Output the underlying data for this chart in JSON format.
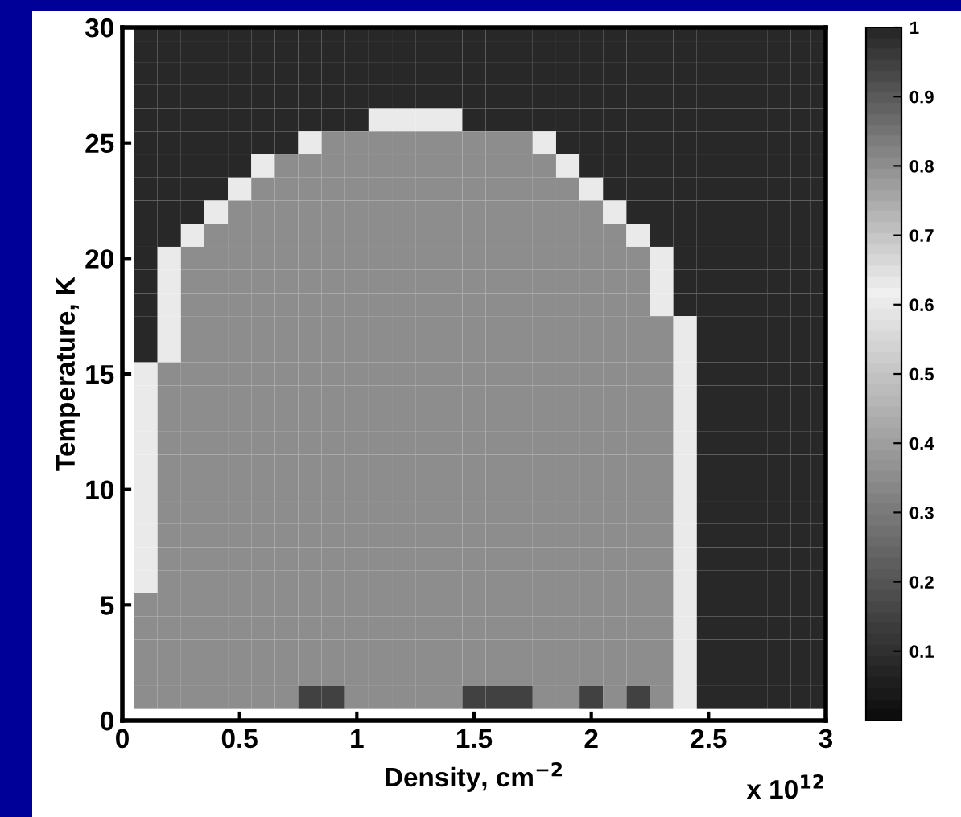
{
  "chart_data": {
    "type": "heatmap",
    "xlabel": "Density, cm$^{−2}$",
    "ylabel": "Temperature, K",
    "annotations": [
      "x 10$^{12}$"
    ],
    "x": [
      0.1,
      0.2,
      0.3,
      0.4,
      0.5,
      0.6,
      0.7,
      0.8,
      0.9,
      1.0,
      1.1,
      1.2,
      1.3,
      1.4,
      1.5,
      1.6,
      1.7,
      1.8,
      1.9,
      2.0,
      2.1,
      2.2,
      2.3,
      2.4,
      2.5,
      2.6,
      2.7,
      2.8,
      2.9,
      2.975
    ],
    "y": [
      29.75,
      29,
      28,
      27,
      26,
      25,
      24,
      23,
      22,
      21,
      20,
      19,
      18,
      17,
      16,
      15,
      14,
      13,
      12,
      11,
      10,
      9,
      8,
      7,
      6,
      5,
      4,
      3,
      2,
      1
    ],
    "cells": [
      [
        1,
        1,
        1,
        1,
        1,
        1,
        1,
        1,
        1,
        1,
        1,
        1,
        1,
        1,
        1,
        1,
        1,
        1,
        1,
        1,
        1,
        1,
        1,
        1,
        1,
        1,
        1,
        1,
        1,
        1
      ],
      [
        1,
        1,
        1,
        1,
        1,
        1,
        1,
        1,
        1,
        1,
        1,
        1,
        1,
        1,
        1,
        1,
        1,
        1,
        1,
        1,
        1,
        1,
        1,
        1,
        1,
        1,
        1,
        1,
        1,
        1
      ],
      [
        1,
        1,
        1,
        1,
        1,
        1,
        1,
        1,
        1,
        1,
        1,
        1,
        1,
        1,
        1,
        1,
        1,
        1,
        1,
        1,
        1,
        1,
        1,
        1,
        1,
        1,
        1,
        1,
        1,
        1
      ],
      [
        1,
        1,
        1,
        1,
        1,
        1,
        1,
        1,
        1,
        1,
        1,
        1,
        1,
        1,
        1,
        1,
        1,
        1,
        1,
        1,
        1,
        1,
        1,
        1,
        1,
        1,
        1,
        1,
        1,
        1
      ],
      [
        1,
        1,
        1,
        1,
        1,
        1,
        1,
        1,
        1,
        1,
        0.6,
        0.6,
        0.6,
        0.6,
        1,
        1,
        1,
        1,
        1,
        1,
        1,
        1,
        1,
        1,
        1,
        1,
        1,
        1,
        1,
        1
      ],
      [
        1,
        1,
        1,
        1,
        1,
        1,
        1,
        0.6,
        0.35,
        0.35,
        0.35,
        0.35,
        0.35,
        0.35,
        0.35,
        0.35,
        0.35,
        0.6,
        1,
        1,
        1,
        1,
        1,
        1,
        1,
        1,
        1,
        1,
        1,
        1
      ],
      [
        1,
        1,
        1,
        1,
        1,
        0.6,
        0.35,
        0.35,
        0.35,
        0.35,
        0.35,
        0.35,
        0.35,
        0.35,
        0.35,
        0.35,
        0.35,
        0.35,
        0.6,
        1,
        1,
        1,
        1,
        1,
        1,
        1,
        1,
        1,
        1,
        1
      ],
      [
        1,
        1,
        1,
        1,
        0.6,
        0.35,
        0.35,
        0.35,
        0.35,
        0.35,
        0.35,
        0.35,
        0.35,
        0.35,
        0.35,
        0.35,
        0.35,
        0.35,
        0.35,
        0.6,
        1,
        1,
        1,
        1,
        1,
        1,
        1,
        1,
        1,
        1
      ],
      [
        1,
        1,
        1,
        0.6,
        0.35,
        0.35,
        0.35,
        0.35,
        0.35,
        0.35,
        0.35,
        0.35,
        0.35,
        0.35,
        0.35,
        0.35,
        0.35,
        0.35,
        0.35,
        0.35,
        0.6,
        1,
        1,
        1,
        1,
        1,
        1,
        1,
        1,
        1
      ],
      [
        1,
        1,
        0.6,
        0.35,
        0.35,
        0.35,
        0.35,
        0.35,
        0.35,
        0.35,
        0.35,
        0.35,
        0.35,
        0.35,
        0.35,
        0.35,
        0.35,
        0.35,
        0.35,
        0.35,
        0.35,
        0.6,
        1,
        1,
        1,
        1,
        1,
        1,
        1,
        1
      ],
      [
        1,
        0.6,
        0.35,
        0.35,
        0.35,
        0.35,
        0.35,
        0.35,
        0.35,
        0.35,
        0.35,
        0.35,
        0.35,
        0.35,
        0.35,
        0.35,
        0.35,
        0.35,
        0.35,
        0.35,
        0.35,
        0.35,
        0.6,
        1,
        1,
        1,
        1,
        1,
        1,
        1
      ],
      [
        1,
        0.6,
        0.35,
        0.35,
        0.35,
        0.35,
        0.35,
        0.35,
        0.35,
        0.35,
        0.35,
        0.35,
        0.35,
        0.35,
        0.35,
        0.35,
        0.35,
        0.35,
        0.35,
        0.35,
        0.35,
        0.35,
        0.6,
        1,
        1,
        1,
        1,
        1,
        1,
        1
      ],
      [
        1,
        0.6,
        0.35,
        0.35,
        0.35,
        0.35,
        0.35,
        0.35,
        0.35,
        0.35,
        0.35,
        0.35,
        0.35,
        0.35,
        0.35,
        0.35,
        0.35,
        0.35,
        0.35,
        0.35,
        0.35,
        0.35,
        0.6,
        1,
        1,
        1,
        1,
        1,
        1,
        1
      ],
      [
        1,
        0.6,
        0.35,
        0.35,
        0.35,
        0.35,
        0.35,
        0.35,
        0.35,
        0.35,
        0.35,
        0.35,
        0.35,
        0.35,
        0.35,
        0.35,
        0.35,
        0.35,
        0.35,
        0.35,
        0.35,
        0.35,
        0.35,
        0.6,
        1,
        1,
        1,
        1,
        1,
        1
      ],
      [
        1,
        0.6,
        0.35,
        0.35,
        0.35,
        0.35,
        0.35,
        0.35,
        0.35,
        0.35,
        0.35,
        0.35,
        0.35,
        0.35,
        0.35,
        0.35,
        0.35,
        0.35,
        0.35,
        0.35,
        0.35,
        0.35,
        0.35,
        0.6,
        1,
        1,
        1,
        1,
        1,
        1
      ],
      [
        0.6,
        0.35,
        0.35,
        0.35,
        0.35,
        0.35,
        0.35,
        0.35,
        0.35,
        0.35,
        0.35,
        0.35,
        0.35,
        0.35,
        0.35,
        0.35,
        0.35,
        0.35,
        0.35,
        0.35,
        0.35,
        0.35,
        0.35,
        0.6,
        1,
        1,
        1,
        1,
        1,
        1
      ],
      [
        0.6,
        0.35,
        0.35,
        0.35,
        0.35,
        0.35,
        0.35,
        0.35,
        0.35,
        0.35,
        0.35,
        0.35,
        0.35,
        0.35,
        0.35,
        0.35,
        0.35,
        0.35,
        0.35,
        0.35,
        0.35,
        0.35,
        0.35,
        0.6,
        1,
        1,
        1,
        1,
        1,
        1
      ],
      [
        0.6,
        0.35,
        0.35,
        0.35,
        0.35,
        0.35,
        0.35,
        0.35,
        0.35,
        0.35,
        0.35,
        0.35,
        0.35,
        0.35,
        0.35,
        0.35,
        0.35,
        0.35,
        0.35,
        0.35,
        0.35,
        0.35,
        0.35,
        0.6,
        1,
        1,
        1,
        1,
        1,
        1
      ],
      [
        0.6,
        0.35,
        0.35,
        0.35,
        0.35,
        0.35,
        0.35,
        0.35,
        0.35,
        0.35,
        0.35,
        0.35,
        0.35,
        0.35,
        0.35,
        0.35,
        0.35,
        0.35,
        0.35,
        0.35,
        0.35,
        0.35,
        0.35,
        0.6,
        1,
        1,
        1,
        1,
        1,
        1
      ],
      [
        0.6,
        0.35,
        0.35,
        0.35,
        0.35,
        0.35,
        0.35,
        0.35,
        0.35,
        0.35,
        0.35,
        0.35,
        0.35,
        0.35,
        0.35,
        0.35,
        0.35,
        0.35,
        0.35,
        0.35,
        0.35,
        0.35,
        0.35,
        0.6,
        1,
        1,
        1,
        1,
        1,
        1
      ],
      [
        0.6,
        0.35,
        0.35,
        0.35,
        0.35,
        0.35,
        0.35,
        0.35,
        0.35,
        0.35,
        0.35,
        0.35,
        0.35,
        0.35,
        0.35,
        0.35,
        0.35,
        0.35,
        0.35,
        0.35,
        0.35,
        0.35,
        0.35,
        0.6,
        1,
        1,
        1,
        1,
        1,
        1
      ],
      [
        0.6,
        0.35,
        0.35,
        0.35,
        0.35,
        0.35,
        0.35,
        0.35,
        0.35,
        0.35,
        0.35,
        0.35,
        0.35,
        0.35,
        0.35,
        0.35,
        0.35,
        0.35,
        0.35,
        0.35,
        0.35,
        0.35,
        0.35,
        0.6,
        1,
        1,
        1,
        1,
        1,
        1
      ],
      [
        0.6,
        0.35,
        0.35,
        0.35,
        0.35,
        0.35,
        0.35,
        0.35,
        0.35,
        0.35,
        0.35,
        0.35,
        0.35,
        0.35,
        0.35,
        0.35,
        0.35,
        0.35,
        0.35,
        0.35,
        0.35,
        0.35,
        0.35,
        0.6,
        1,
        1,
        1,
        1,
        1,
        1
      ],
      [
        0.6,
        0.35,
        0.35,
        0.35,
        0.35,
        0.35,
        0.35,
        0.35,
        0.35,
        0.35,
        0.35,
        0.35,
        0.35,
        0.35,
        0.35,
        0.35,
        0.35,
        0.35,
        0.35,
        0.35,
        0.35,
        0.35,
        0.35,
        0.6,
        1,
        1,
        1,
        1,
        1,
        1
      ],
      [
        0.6,
        0.35,
        0.35,
        0.35,
        0.35,
        0.35,
        0.35,
        0.35,
        0.35,
        0.35,
        0.35,
        0.35,
        0.35,
        0.35,
        0.35,
        0.35,
        0.35,
        0.35,
        0.35,
        0.35,
        0.35,
        0.35,
        0.35,
        0.6,
        1,
        1,
        1,
        1,
        1,
        1
      ],
      [
        0.35,
        0.35,
        0.35,
        0.35,
        0.35,
        0.35,
        0.35,
        0.35,
        0.35,
        0.35,
        0.35,
        0.35,
        0.35,
        0.35,
        0.35,
        0.35,
        0.35,
        0.35,
        0.35,
        0.35,
        0.35,
        0.35,
        0.35,
        0.6,
        1,
        1,
        1,
        1,
        1,
        1
      ],
      [
        0.35,
        0.35,
        0.35,
        0.35,
        0.35,
        0.35,
        0.35,
        0.35,
        0.35,
        0.35,
        0.35,
        0.35,
        0.35,
        0.35,
        0.35,
        0.35,
        0.35,
        0.35,
        0.35,
        0.35,
        0.35,
        0.35,
        0.35,
        0.6,
        1,
        1,
        1,
        1,
        1,
        1
      ],
      [
        0.35,
        0.35,
        0.35,
        0.35,
        0.35,
        0.35,
        0.35,
        0.35,
        0.35,
        0.35,
        0.35,
        0.35,
        0.35,
        0.35,
        0.35,
        0.35,
        0.35,
        0.35,
        0.35,
        0.35,
        0.35,
        0.35,
        0.35,
        0.6,
        1,
        1,
        1,
        1,
        1,
        1
      ],
      [
        0.35,
        0.35,
        0.35,
        0.35,
        0.35,
        0.35,
        0.35,
        0.35,
        0.35,
        0.35,
        0.35,
        0.35,
        0.35,
        0.35,
        0.35,
        0.35,
        0.35,
        0.35,
        0.35,
        0.35,
        0.35,
        0.35,
        0.35,
        0.6,
        1,
        1,
        1,
        1,
        1,
        1
      ],
      [
        0.35,
        0.35,
        0.35,
        0.35,
        0.35,
        0.35,
        0.35,
        0.15,
        0.15,
        0.35,
        0.35,
        0.35,
        0.35,
        0.35,
        0.15,
        0.15,
        0.15,
        0.35,
        0.35,
        0.15,
        0.35,
        0.15,
        0.35,
        0.6,
        1,
        1,
        1,
        1,
        1,
        1
      ]
    ],
    "xlim": [
      0,
      3
    ],
    "xticks": [
      0,
      0.5,
      1,
      1.5,
      2,
      2.5,
      3
    ],
    "ylim": [
      0,
      30
    ],
    "yticks": [
      0,
      5,
      10,
      15,
      20,
      25,
      30
    ],
    "clim": [
      0,
      1
    ],
    "cticks": [
      0.1,
      0.2,
      0.3,
      0.4,
      0.5,
      0.6,
      0.7,
      0.8,
      0.9,
      1
    ],
    "grid": false
  }
}
